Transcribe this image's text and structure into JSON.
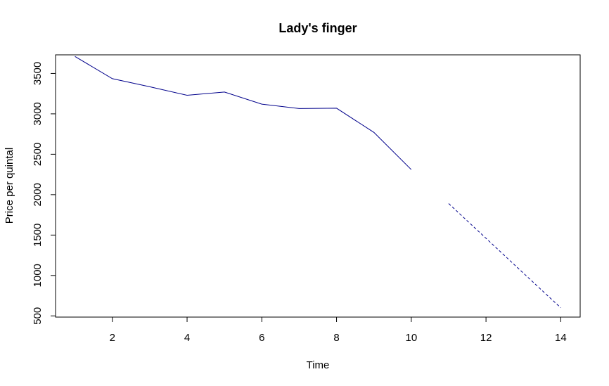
{
  "chart_data": {
    "type": "line",
    "title": "Lady's finger",
    "xlabel": "Time",
    "ylabel": "Price per quintal",
    "xlim": [
      0.48,
      14.52
    ],
    "ylim": [
      485,
      3730
    ],
    "x_ticks": [
      2,
      4,
      6,
      8,
      10,
      12,
      14
    ],
    "y_ticks": [
      500,
      1000,
      1500,
      2000,
      2500,
      3000,
      3500
    ],
    "grid": false,
    "legend": "none",
    "series": [
      {
        "style": "solid",
        "color": "#00008B",
        "x": [
          1,
          2,
          3,
          4,
          5,
          6,
          7,
          8,
          9,
          10
        ],
        "y": [
          3710,
          3435,
          3335,
          3230,
          3270,
          3120,
          3065,
          3070,
          2770,
          2310
        ]
      },
      {
        "style": "dashed",
        "color": "#00008B",
        "x": [
          11,
          12,
          13,
          14
        ],
        "y": [
          1890,
          1460,
          1030,
          600
        ]
      }
    ]
  }
}
